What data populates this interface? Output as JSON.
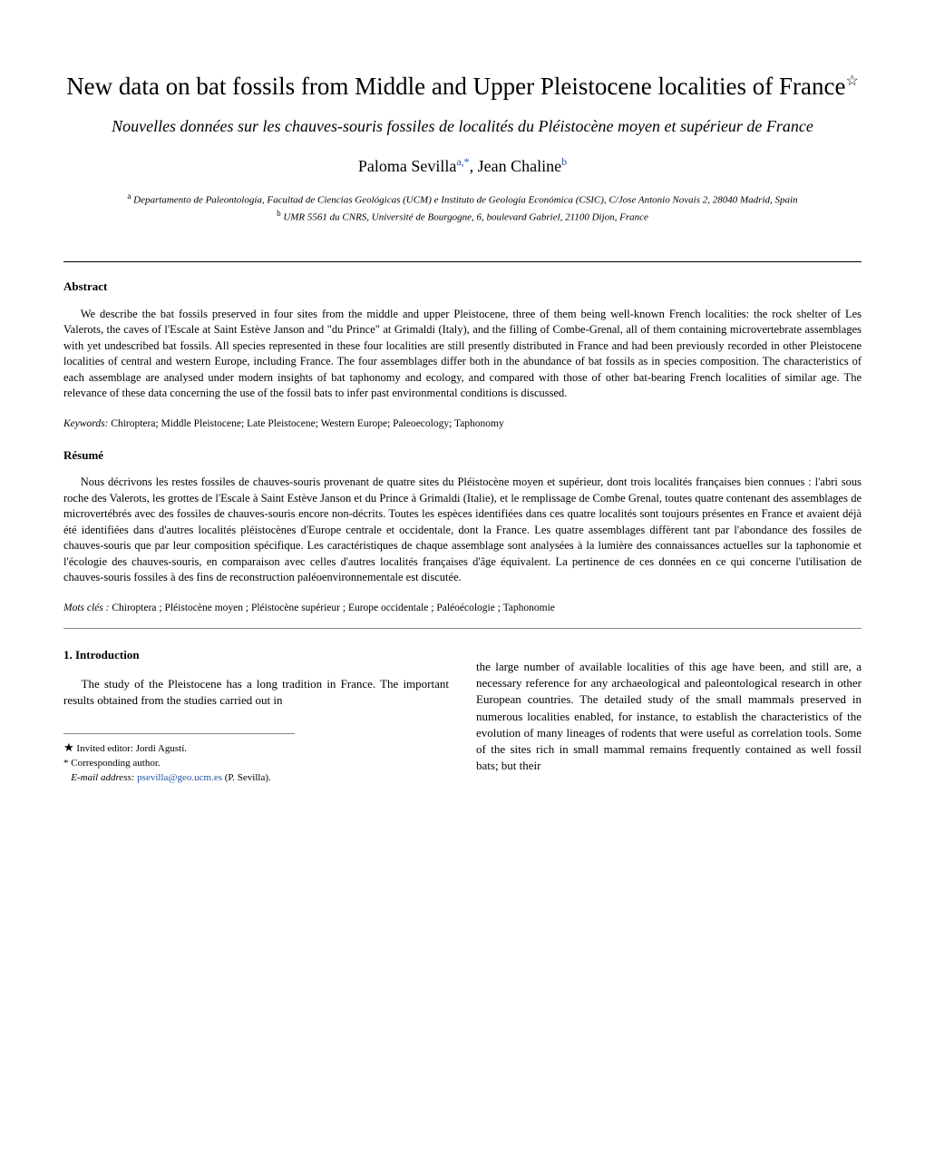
{
  "title": "New data on bat fossils from Middle and Upper Pleistocene localities of France",
  "subtitle": "Nouvelles données sur les chauves-souris fossiles de localités du Pléistocène moyen et supérieur de France",
  "authors": {
    "author1_name": "Paloma Sevilla",
    "author1_sup": "a,",
    "author1_ast": "*",
    "separator": ", ",
    "author2_name": "Jean Chaline",
    "author2_sup": "b"
  },
  "affiliations": {
    "a_sup": "a",
    "a_text": "Departamento de Paleontología, Facultad de Ciencias Geológicas (UCM) e Instituto de Geología Económica (CSIC), C/Jose Antonio Novais 2, 28040 Madrid, Spain",
    "b_sup": "b",
    "b_text": "UMR 5561 du CNRS, Université de Bourgogne, 6, boulevard Gabriel, 21100 Dijon, France"
  },
  "abstract": {
    "heading": "Abstract",
    "text": "We describe the bat fossils preserved in four sites from the middle and upper Pleistocene, three of them being well-known French localities: the rock shelter of Les Valerots, the caves of l'Escale at Saint Estève Janson and \"du Prince\" at Grimaldi (Italy), and the filling of Combe-Grenal, all of them containing microvertebrate assemblages with yet undescribed bat fossils. All species represented in these four localities are still presently distributed in France and had been previously recorded in other Pleistocene localities of central and western Europe, including France. The four assemblages differ both in the abundance of bat fossils as in species composition. The characteristics of each assemblage are analysed under modern insights of bat taphonomy and ecology, and compared with those of other bat-bearing French localities of similar age. The relevance of these data concerning the use of the fossil bats to infer past environmental conditions is discussed."
  },
  "keywords_en": {
    "label": "Keywords:",
    "text": " Chiroptera; Middle Pleistocene; Late Pleistocene; Western Europe; Paleoecology; Taphonomy"
  },
  "resume": {
    "heading": "Résumé",
    "text": "Nous décrivons les restes fossiles de chauves-souris provenant de quatre sites du Pléistocène moyen et supérieur, dont trois localités françaises bien connues : l'abri sous roche des Valerots, les grottes de l'Escale à Saint Estève Janson et du Prince à Grimaldi (Italie), et le remplissage de Combe Grenal, toutes quatre contenant des assemblages de microvertébrés avec des fossiles de chauves-souris encore non-décrits. Toutes les espèces identifiées dans ces quatre localités sont toujours présentes en France et avaient déjà été identifiées dans d'autres localités pléistocènes d'Europe centrale et occidentale, dont la France. Les quatre assemblages diffèrent tant par l'abondance des fossiles de chauves-souris que par leur composition spécifique. Les caractéristiques de chaque assemblage sont analysées à la lumière des connaissances actuelles sur la taphonomie et l'écologie des chauves-souris, en comparaison avec celles d'autres localités françaises d'âge équivalent. La pertinence de ces données en ce qui concerne l'utilisation de chauves-souris fossiles à des fins de reconstruction paléoenvironnementale est discutée."
  },
  "keywords_fr": {
    "label": "Mots clés :",
    "text": " Chiroptera ; Pléistocène moyen ; Pléistocène supérieur ; Europe occidentale ; Paléoécologie ; Taphonomie"
  },
  "introduction": {
    "heading": "1.  Introduction",
    "col1_text": "The study of the Pleistocene has a long tradition in France. The important results obtained from the studies carried out in",
    "col2_text": "the large number of available localities of this age have been, and still are, a necessary reference for any archaeological and paleontological research in other European countries. The detailed study of the small mammals preserved in numerous localities enabled, for instance, to establish the characteristics of the evolution of many lineages of rodents that were useful as correlation tools. Some of the sites rich in small mammal remains frequently contained as well fossil bats; but their"
  },
  "footnotes": {
    "f1_marker": "★",
    "f1_text": " Invited editor: Jordi Agustí.",
    "f2_marker": "*",
    "f2_text": " Corresponding author.",
    "email_label": "E-mail address:",
    "email_value": " psevilla@geo.ucm.es",
    "email_suffix": " (P. Sevilla)."
  }
}
